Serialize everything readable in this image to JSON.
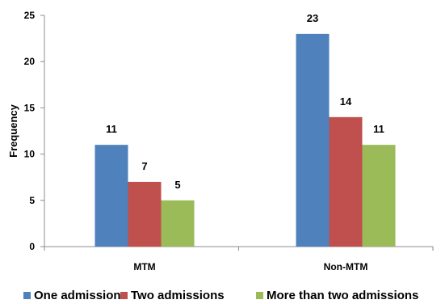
{
  "chart_data": {
    "type": "bar",
    "title": "",
    "xlabel": "",
    "ylabel": "Frequency",
    "categories": [
      "MTM",
      "Non-MTM"
    ],
    "series": [
      {
        "name": "One admission",
        "color": "#4f81bd",
        "values": [
          11,
          23
        ]
      },
      {
        "name": "Two admissions",
        "color": "#c0504d",
        "values": [
          7,
          14
        ]
      },
      {
        "name": "More than two admissions",
        "color": "#9bbb59",
        "values": [
          5,
          11
        ]
      }
    ],
    "ylim": [
      0,
      25
    ],
    "yticks": [
      0,
      5,
      10,
      15,
      20,
      25
    ],
    "grid": false,
    "legend_position": "bottom",
    "data_labels": true
  }
}
